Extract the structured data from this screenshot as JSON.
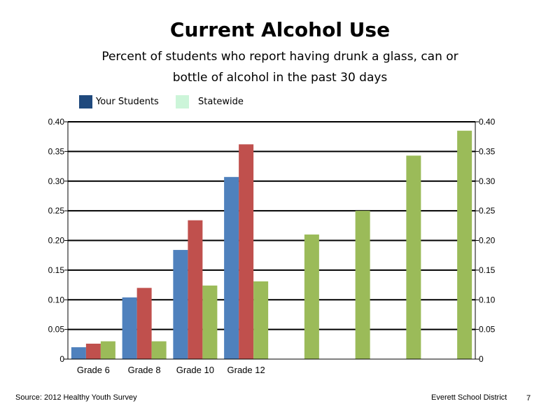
{
  "chart_data": {
    "type": "bar",
    "title": "Current Alcohol Use",
    "subtitle": "Percent of students who report having drunk a glass, can or bottle of alcohol in the past 30 days",
    "categories": [
      "Grade 6",
      "Grade 8",
      "Grade 10",
      "Grade 12",
      "",
      "",
      "",
      ""
    ],
    "series": [
      {
        "name": "",
        "color": "#4f81bd",
        "values": [
          0.02,
          0.104,
          0.184,
          0.307,
          null,
          null,
          null,
          null
        ]
      },
      {
        "name": "",
        "color": "#c0504d",
        "values": [
          0.026,
          0.12,
          0.234,
          0.362,
          null,
          null,
          null,
          null
        ]
      },
      {
        "name": "",
        "color": "#9bbb59",
        "values": [
          0.03,
          0.03,
          0.124,
          0.131,
          0.21,
          0.25,
          0.343,
          0.385
        ]
      }
    ],
    "ylim": [
      0,
      0.4
    ],
    "yticks": [
      "0",
      "0.05",
      "0.10",
      "0.15",
      "0.20",
      "0.25",
      "0.30",
      "0.35",
      "0.40"
    ],
    "ytick_values": [
      0,
      0.05,
      0.1,
      0.15,
      0.2,
      0.25,
      0.3,
      0.35,
      0.4
    ],
    "secondary_yticks": [
      "0",
      "0.05",
      "0.10",
      "0.15",
      "0.20",
      "0.25",
      "0.30",
      "0.35",
      "0.40"
    ],
    "grid": true,
    "legend": {
      "placement": "top-left",
      "entries": [
        {
          "label": "Your Students",
          "color": "#1f497d"
        },
        {
          "label": "Statewide",
          "color": "#ccf5d9"
        }
      ]
    }
  },
  "footer": {
    "source": "Source: 2012 Healthy Youth Survey",
    "district": "Everett School District",
    "page": "7"
  }
}
